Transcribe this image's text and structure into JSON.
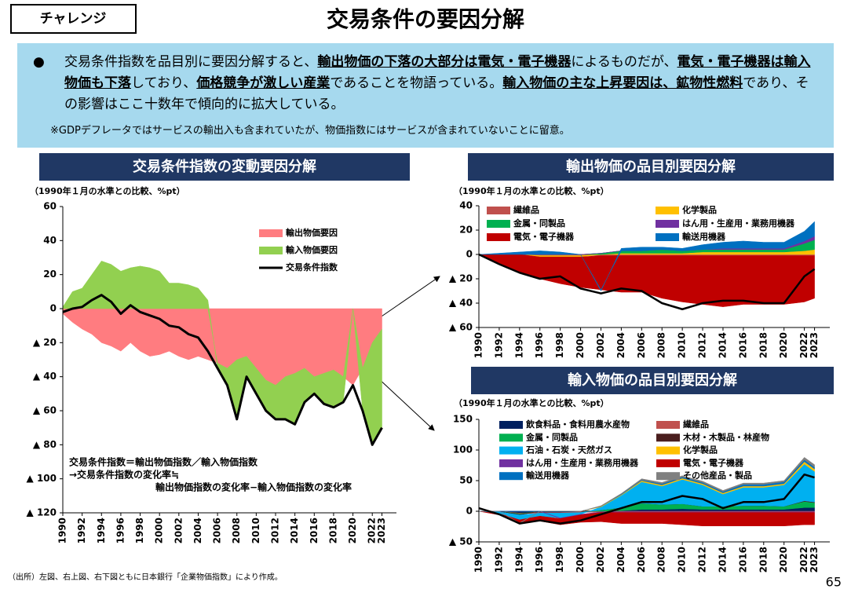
{
  "header": {
    "tag": "チャレンジ",
    "title": "交易条件の要因分解"
  },
  "summary": {
    "runs": [
      "交易条件指数を品目別に要因分解すると、",
      "輸出物価の下落の大部分は電気・電子機器",
      "によるものだが、",
      "電気・電子機器は輸入物価も下落",
      "しており、",
      "価格競争が激しい産業",
      "であることを物語っている。",
      "輸入物価の主な上昇要因は、鉱物性燃料",
      "であり、その影響はここ十数年で傾向的に拡大している。"
    ],
    "note": "※GDPデフレータではサービスの輸出入も含まれていたが、物価指数にはサービスが含まれていないことに留意。"
  },
  "footer": {
    "source": "（出所）左図、右上図、右下図ともに日本銀行「企業物価指数」により作成。",
    "page": "65"
  },
  "chart_data": [
    {
      "type": "stacked-area",
      "title": "交易条件指数の変動要因分解",
      "subtitle": "（1990年１月の水準との比較、%pt）",
      "annotations": [
        "交易条件指数＝輸出物価指数／輸入物価指数",
        "→交易条件指数の変化率≒",
        "輸出物価指数の変化率−輸入物価指数の変化率"
      ],
      "x": [
        1990,
        1991,
        1992,
        1993,
        1994,
        1995,
        1996,
        1997,
        1998,
        1999,
        2000,
        2001,
        2002,
        2003,
        2004,
        2005,
        2006,
        2007,
        2008,
        2009,
        2010,
        2011,
        2012,
        2013,
        2014,
        2015,
        2016,
        2017,
        2018,
        2019,
        2020,
        2021,
        2022,
        2023
      ],
      "xlim": [
        1990,
        2024.5
      ],
      "xticks": [
        1990,
        1992,
        1994,
        1996,
        1998,
        2000,
        2002,
        2004,
        2006,
        2008,
        2010,
        2012,
        2014,
        2016,
        2018,
        2020,
        2022,
        2023
      ],
      "ylim": [
        -120,
        60
      ],
      "yticks": [
        60,
        40,
        20,
        0,
        {
          "value": -20,
          "label": "▲ 20"
        },
        {
          "value": -40,
          "label": "▲ 40"
        },
        {
          "value": -60,
          "label": "▲ 60"
        },
        {
          "value": -80,
          "label": "▲ 80"
        },
        {
          "value": -100,
          "label": "▲ 100"
        },
        {
          "value": -120,
          "label": "▲ 120"
        }
      ],
      "series": [
        {
          "name": "輸出物価要因",
          "color": "#ff7c80",
          "values": [
            -3,
            -8,
            -12,
            -15,
            -20,
            -22,
            -25,
            -20,
            -25,
            -28,
            -27,
            -25,
            -28,
            -30,
            -28,
            -30,
            -32,
            -35,
            -30,
            -28,
            -35,
            -42,
            -45,
            -40,
            -38,
            -35,
            -40,
            -38,
            -36,
            -40,
            -45,
            -35,
            -20,
            -12
          ]
        },
        {
          "name": "輸入物価要因",
          "color": "#92d050",
          "values": [
            1,
            10,
            12,
            20,
            28,
            26,
            22,
            24,
            25,
            24,
            22,
            15,
            15,
            14,
            12,
            5,
            -3,
            -10,
            -35,
            -12,
            -15,
            -18,
            -20,
            -25,
            -30,
            -20,
            -10,
            -18,
            -22,
            -15,
            0,
            -25,
            -60,
            -58
          ]
        },
        {
          "name": "交易条件指数",
          "type": "line",
          "color": "#000000",
          "values": [
            -2,
            0,
            1,
            5,
            8,
            4,
            -3,
            2,
            -2,
            -4,
            -6,
            -10,
            -11,
            -15,
            -17,
            -25,
            -35,
            -45,
            -65,
            -40,
            -50,
            -60,
            -65,
            -65,
            -68,
            -55,
            -50,
            -56,
            -58,
            -55,
            -45,
            -60,
            -80,
            -70
          ]
        }
      ]
    },
    {
      "type": "stacked-area",
      "title": "輸出物価の品目別要因分解",
      "subtitle": "（1990年１月の水準との比較、%pt）",
      "x": [
        1990,
        1992,
        1994,
        1996,
        1998,
        2000,
        2002,
        2004,
        2006,
        2008,
        2010,
        2012,
        2014,
        2016,
        2018,
        2020,
        2022,
        2023
      ],
      "xlim": [
        1990,
        2024.5
      ],
      "xticks": [
        1990,
        1992,
        1994,
        1996,
        1998,
        2000,
        2002,
        2004,
        2006,
        2008,
        2010,
        2012,
        2014,
        2016,
        2018,
        2020,
        2022,
        2023
      ],
      "ylim": [
        -60,
        40
      ],
      "yticks": [
        40,
        20,
        0,
        {
          "value": -20,
          "label": "▲ 20"
        },
        {
          "value": -40,
          "label": "▲ 40"
        },
        {
          "value": -60,
          "label": "▲ 60"
        }
      ],
      "series": [
        {
          "name": "繊維品",
          "color": "#c0504d",
          "values": [
            0,
            0,
            0,
            -1,
            -1,
            -1,
            -1,
            -1,
            -1,
            -1,
            -1,
            -1,
            -1,
            -1,
            -1,
            -1,
            -1,
            -1
          ]
        },
        {
          "name": "化学製品",
          "color": "#ffc000",
          "values": [
            0,
            0,
            0,
            -1,
            -1,
            -1,
            0,
            1,
            1,
            1,
            1,
            2,
            2,
            2,
            2,
            2,
            3,
            4
          ]
        },
        {
          "name": "金属・同製品",
          "color": "#00b050",
          "values": [
            0,
            0,
            0,
            0,
            0,
            0,
            1,
            2,
            2,
            3,
            2,
            2,
            2,
            2,
            2,
            2,
            6,
            8
          ]
        },
        {
          "name": "はん用・生産用・業務用機器",
          "color": "#7030a0",
          "values": [
            0,
            0,
            0,
            0,
            0,
            0,
            0,
            0,
            0,
            0,
            0,
            0,
            1,
            1,
            1,
            1,
            2,
            3
          ]
        },
        {
          "name": "電気・電子機器",
          "color": "#c00000",
          "values": [
            0,
            -8,
            -15,
            -18,
            -22,
            -25,
            -28,
            -30,
            -30,
            -35,
            -38,
            -40,
            -42,
            -40,
            -40,
            -40,
            -38,
            -35
          ]
        },
        {
          "name": "輸送用機器",
          "color": "#0070c0",
          "values": [
            0,
            1,
            2,
            3,
            2,
            0,
            -1,
            2,
            3,
            2,
            2,
            4,
            5,
            6,
            5,
            5,
            8,
            12
          ]
        },
        {
          "type": "line",
          "color": "#000000",
          "values": [
            0,
            -8,
            -15,
            -20,
            -18,
            -28,
            -32,
            -28,
            -30,
            -40,
            -45,
            -40,
            -38,
            -38,
            -40,
            -40,
            -18,
            -12
          ]
        }
      ]
    },
    {
      "type": "stacked-area",
      "title": "輸入物価の品目別要因分解",
      "subtitle": "（1990年１月の水準との比較、%pt）",
      "x": [
        1990,
        1992,
        1994,
        1996,
        1998,
        2000,
        2002,
        2004,
        2006,
        2008,
        2010,
        2012,
        2014,
        2016,
        2018,
        2020,
        2022,
        2023
      ],
      "xlim": [
        1990,
        2024.5
      ],
      "xticks": [
        1990,
        1992,
        1994,
        1996,
        1998,
        2000,
        2002,
        2004,
        2006,
        2008,
        2010,
        2012,
        2014,
        2016,
        2018,
        2020,
        2022,
        2023
      ],
      "ylim": [
        -50,
        150
      ],
      "yticks": [
        150,
        100,
        50,
        0,
        {
          "value": -50,
          "label": "▲ 50"
        }
      ],
      "series": [
        {
          "name": "飲食料品・食料用農水産物",
          "color": "#002060",
          "values": [
            0,
            -1,
            -3,
            -2,
            -2,
            -1,
            0,
            1,
            3,
            3,
            4,
            3,
            3,
            3,
            3,
            3,
            6,
            6
          ]
        },
        {
          "name": "繊維品",
          "color": "#c0504d",
          "values": [
            0,
            0,
            -1,
            -1,
            -1,
            -1,
            -1,
            -1,
            -1,
            -1,
            -1,
            -1,
            -1,
            -1,
            -1,
            -1,
            -1,
            -1
          ]
        },
        {
          "name": "金属・同製品",
          "color": "#00b050",
          "values": [
            0,
            0,
            -1,
            0,
            0,
            0,
            2,
            5,
            10,
            8,
            8,
            5,
            5,
            6,
            6,
            5,
            10,
            8
          ]
        },
        {
          "name": "木材・木製品・林産物",
          "color": "#4a1e1e",
          "values": [
            0,
            0,
            -1,
            0,
            0,
            0,
            0,
            0,
            0,
            0,
            0,
            0,
            0,
            0,
            0,
            0,
            1,
            1
          ]
        },
        {
          "name": "石油・石炭・天然ガス",
          "color": "#00b0f0",
          "values": [
            0,
            -3,
            -8,
            -5,
            -8,
            -3,
            5,
            20,
            35,
            30,
            40,
            35,
            20,
            30,
            30,
            35,
            60,
            50
          ]
        },
        {
          "name": "化学製品",
          "color": "#ffc000",
          "values": [
            0,
            0,
            0,
            0,
            0,
            0,
            1,
            1,
            2,
            2,
            2,
            2,
            2,
            2,
            2,
            2,
            4,
            4
          ]
        },
        {
          "name": "はん用・生産用・業務用機器",
          "color": "#7030a0",
          "values": [
            0,
            0,
            0,
            0,
            -1,
            -1,
            -1,
            -1,
            -1,
            -1,
            -1,
            -1,
            -1,
            -1,
            -1,
            -1,
            -1,
            -1
          ]
        },
        {
          "name": "電気・電子機器",
          "color": "#c00000",
          "values": [
            0,
            -2,
            -5,
            -8,
            -10,
            -12,
            -15,
            -18,
            -18,
            -18,
            -20,
            -22,
            -22,
            -22,
            -22,
            -22,
            -20,
            -20
          ]
        },
        {
          "name": "輸送用機器",
          "color": "#0070c0",
          "values": [
            0,
            0,
            0,
            0,
            0,
            0,
            0,
            1,
            1,
            2,
            2,
            2,
            2,
            3,
            3,
            3,
            3,
            3
          ]
        },
        {
          "name": "その他産品・製品",
          "color": "#808080",
          "values": [
            0,
            0,
            -1,
            0,
            0,
            0,
            1,
            1,
            2,
            2,
            2,
            2,
            2,
            2,
            2,
            2,
            4,
            4
          ]
        },
        {
          "type": "line",
          "color": "#000000",
          "values": [
            5,
            -5,
            -20,
            -15,
            -20,
            -15,
            -5,
            5,
            15,
            15,
            25,
            20,
            5,
            15,
            15,
            20,
            60,
            55
          ]
        }
      ]
    }
  ]
}
